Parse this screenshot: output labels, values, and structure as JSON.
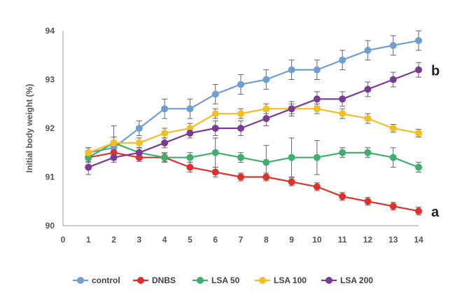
{
  "chart_data": {
    "type": "line",
    "title": "",
    "xlabel": "",
    "ylabel": "Initial body weight (%)",
    "x": [
      1,
      2,
      3,
      4,
      5,
      6,
      7,
      8,
      9,
      10,
      11,
      12,
      13,
      14
    ],
    "xlim": [
      0,
      14
    ],
    "xticks": [
      "0",
      "1",
      "2",
      "3",
      "4",
      "5",
      "6",
      "7",
      "8",
      "9",
      "10",
      "11",
      "12",
      "13",
      "14"
    ],
    "ylim": [
      90,
      94
    ],
    "yticks": [
      "90",
      "91",
      "92",
      "93",
      "94"
    ],
    "grid": false,
    "legend_position": "bottom",
    "series": [
      {
        "name": "control",
        "color": "#6f9ed4",
        "values": [
          91.5,
          91.6,
          92.0,
          92.4,
          92.4,
          92.7,
          92.9,
          93.0,
          93.2,
          93.2,
          93.4,
          93.6,
          93.7,
          93.8
        ],
        "errors": [
          0.1,
          0.12,
          0.15,
          0.2,
          0.2,
          0.2,
          0.2,
          0.2,
          0.2,
          0.2,
          0.2,
          0.2,
          0.2,
          0.2
        ]
      },
      {
        "name": "DNBS",
        "color": "#e0302c",
        "values": [
          91.4,
          91.5,
          91.4,
          91.4,
          91.2,
          91.1,
          91.0,
          91.0,
          90.9,
          90.8,
          90.6,
          90.5,
          90.4,
          90.3
        ],
        "errors": [
          0.08,
          0.08,
          0.08,
          0.08,
          0.1,
          0.1,
          0.08,
          0.08,
          0.08,
          0.08,
          0.08,
          0.08,
          0.08,
          0.08
        ]
      },
      {
        "name": "LSA 50",
        "color": "#3fae6e",
        "values": [
          91.4,
          91.7,
          91.5,
          91.4,
          91.4,
          91.5,
          91.4,
          91.3,
          91.4,
          91.4,
          91.5,
          91.5,
          91.4,
          91.2
        ],
        "errors": [
          0.1,
          0.12,
          0.1,
          0.1,
          0.1,
          0.3,
          0.1,
          0.35,
          0.4,
          0.35,
          0.1,
          0.1,
          0.2,
          0.1
        ]
      },
      {
        "name": "LSA 100",
        "color": "#f5be21",
        "values": [
          91.5,
          91.7,
          91.7,
          91.9,
          92.0,
          92.3,
          92.3,
          92.4,
          92.4,
          92.4,
          92.3,
          92.2,
          92.0,
          91.9
        ],
        "errors": [
          0.1,
          0.35,
          0.1,
          0.1,
          0.1,
          0.1,
          0.1,
          0.1,
          0.1,
          0.1,
          0.1,
          0.1,
          0.08,
          0.08
        ]
      },
      {
        "name": "LSA 200",
        "color": "#7b3a96",
        "values": [
          91.2,
          91.4,
          91.5,
          91.7,
          91.9,
          92.0,
          92.0,
          92.2,
          92.4,
          92.6,
          92.6,
          92.8,
          93.0,
          93.2
        ],
        "errors": [
          0.15,
          0.1,
          0.1,
          0.1,
          0.1,
          0.15,
          0.15,
          0.15,
          0.15,
          0.15,
          0.15,
          0.15,
          0.15,
          0.15
        ]
      }
    ],
    "annotations": [
      {
        "text": "b",
        "series": "LSA 200"
      },
      {
        "text": "a",
        "series": "DNBS"
      }
    ]
  }
}
